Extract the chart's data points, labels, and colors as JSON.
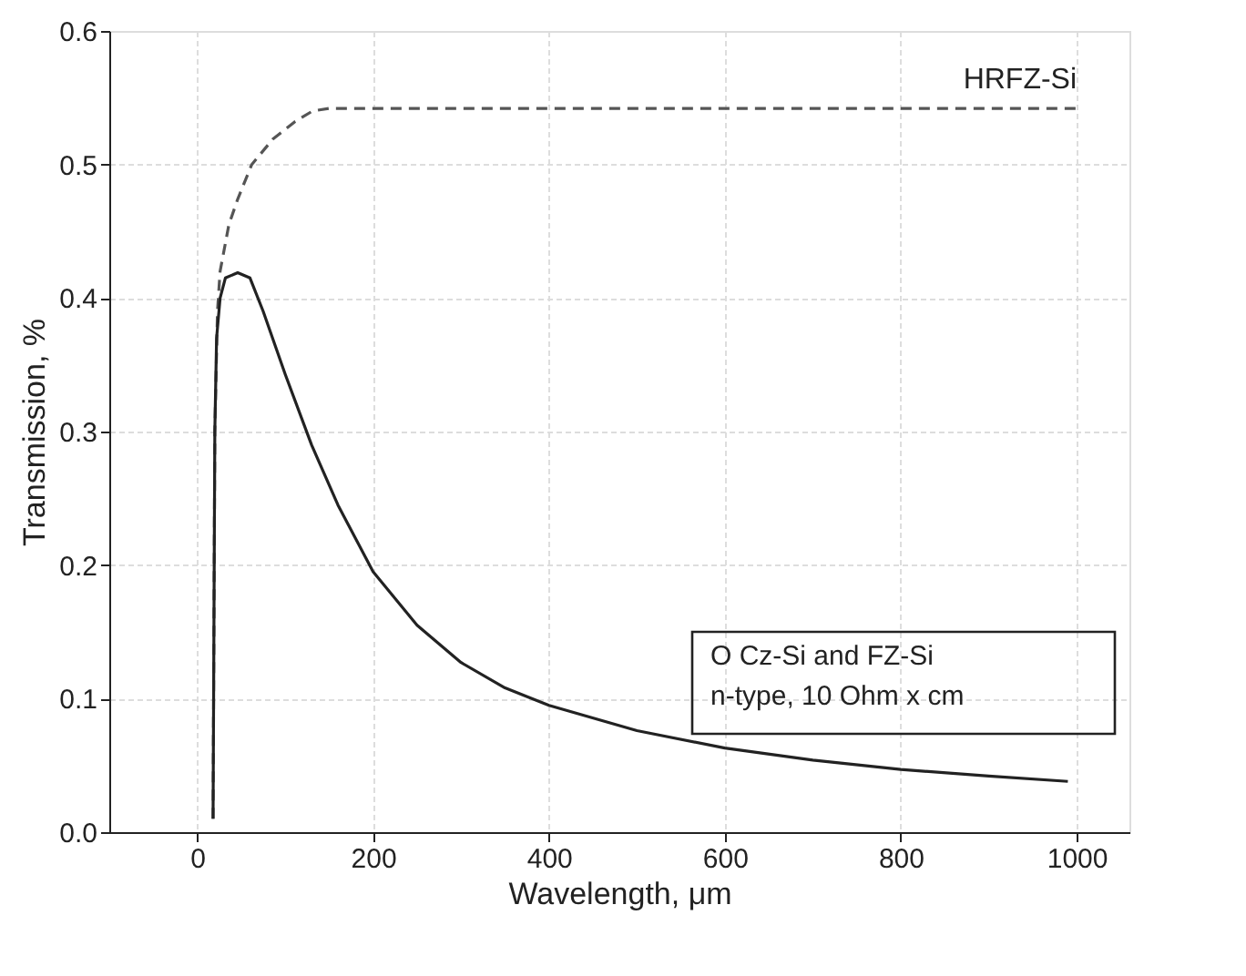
{
  "chart_data": {
    "type": "line",
    "xlabel": "Wavelength, μm",
    "ylabel": "Transmission, %",
    "xlim": [
      -100,
      1060
    ],
    "xticks": [
      0,
      200,
      400,
      600,
      800,
      1000
    ],
    "ylim": [
      0,
      0.6
    ],
    "yticks": [
      {
        "value": 0,
        "label": "0.0"
      },
      0.1,
      0.2,
      0.3,
      0.4,
      0.5,
      0.6
    ],
    "grid": true,
    "series": [
      {
        "name": "HRFZ-Si",
        "color": "#555555",
        "line_style": "dashed",
        "x": [
          18,
          20,
          23,
          26,
          36,
          46,
          62,
          86,
          111,
          131,
          150,
          300,
          500,
          700,
          1000
        ],
        "values": [
          0.01,
          0.3,
          0.39,
          0.42,
          0.455,
          0.474,
          0.5,
          0.519,
          0.532,
          0.54,
          0.542,
          0.542,
          0.542,
          0.542,
          0.542
        ]
      },
      {
        "color": "#222222",
        "line_style": "solid",
        "x": [
          18,
          20,
          22,
          26,
          32,
          46,
          60,
          75,
          100,
          130,
          160,
          200,
          250,
          300,
          350,
          400,
          500,
          600,
          700,
          800,
          900,
          990
        ],
        "values": [
          0.01,
          0.3,
          0.37,
          0.4,
          0.415,
          0.419,
          0.415,
          0.39,
          0.343,
          0.29,
          0.245,
          0.195,
          0.155,
          0.127,
          0.108,
          0.095,
          0.076,
          0.063,
          0.054,
          0.047,
          0.042,
          0.038
        ]
      }
    ],
    "annotations": [
      "O Cz-Si and  FZ-Si\nn-type, 10 Ohm x cm"
    ]
  }
}
